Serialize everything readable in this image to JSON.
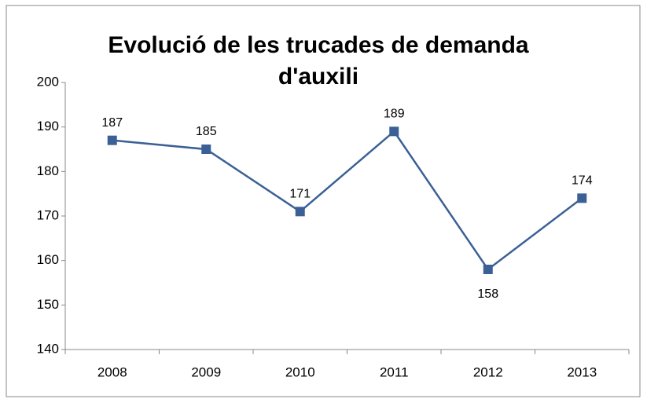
{
  "chart_data": {
    "type": "line",
    "title": "Evolució de les trucades de demanda d'auxili",
    "categories": [
      "2008",
      "2009",
      "2010",
      "2011",
      "2012",
      "2013"
    ],
    "series": [
      {
        "color": "#3b6096",
        "values": [
          187,
          185,
          171,
          189,
          158,
          174
        ]
      }
    ],
    "ylim": [
      140,
      200
    ],
    "yticks": [
      140,
      150,
      160,
      170,
      180,
      190,
      200
    ],
    "grid": false,
    "data_labels": true
  }
}
